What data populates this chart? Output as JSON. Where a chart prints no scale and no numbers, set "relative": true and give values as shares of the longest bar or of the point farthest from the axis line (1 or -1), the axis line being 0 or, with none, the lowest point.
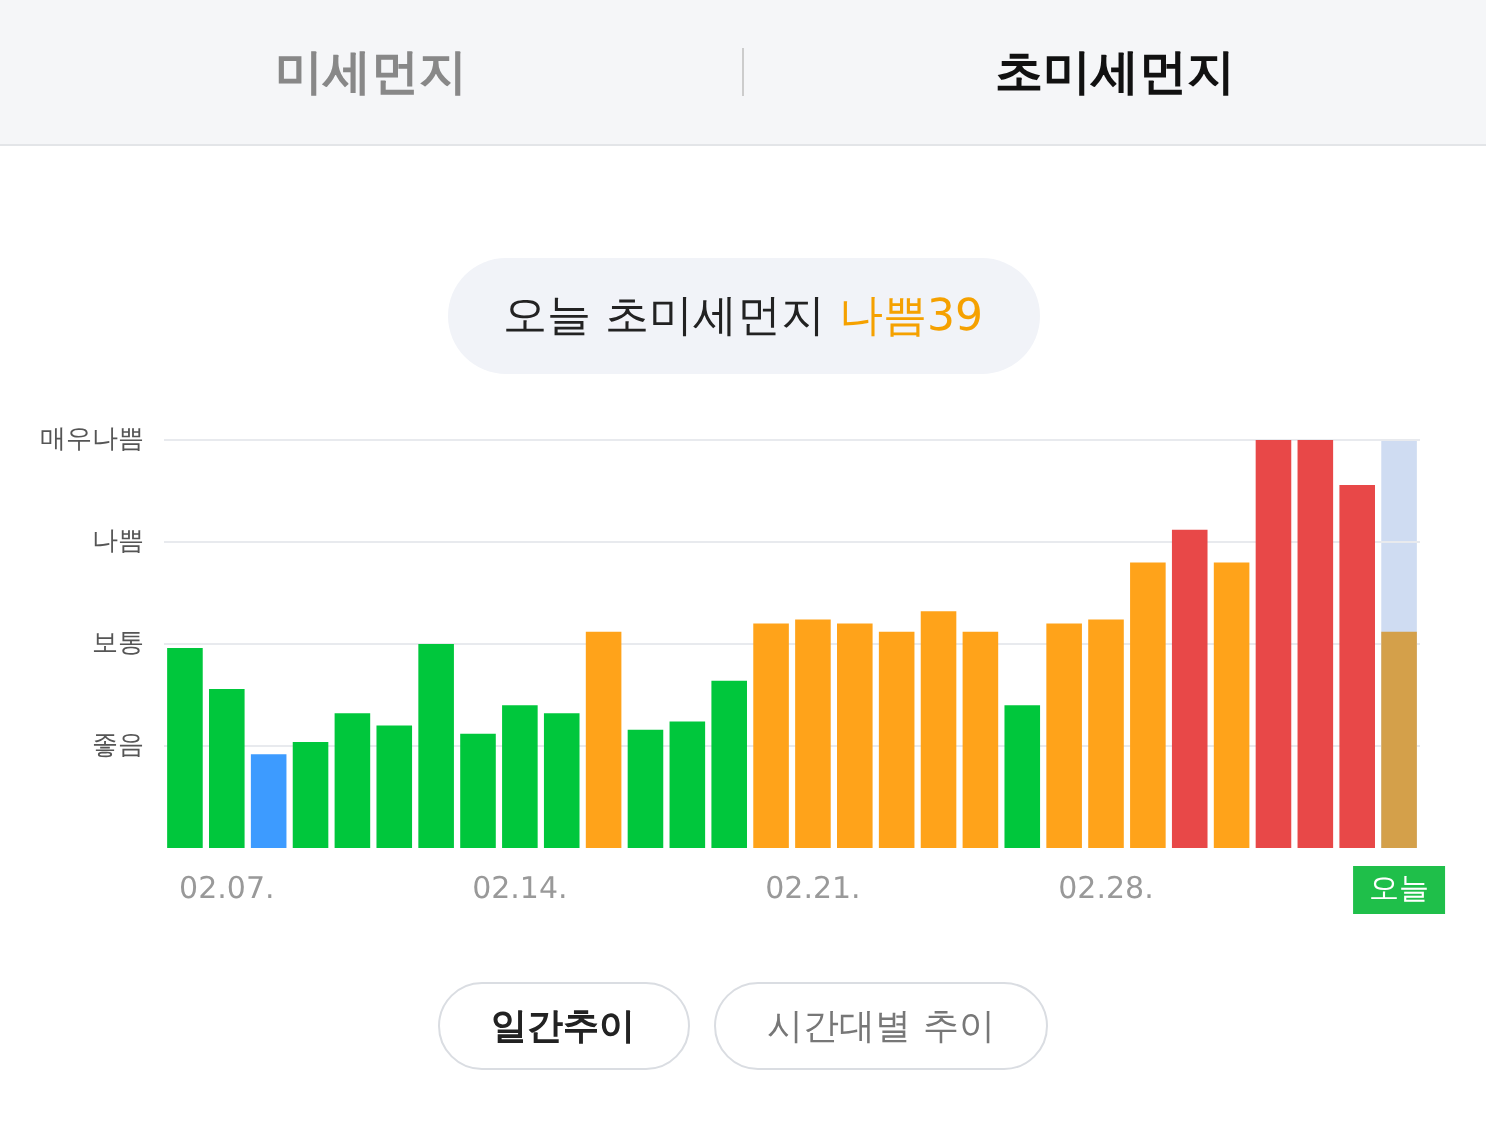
{
  "chart_data": {
    "type": "bar",
    "title": "오늘 초미세먼지 나쁨39",
    "annotations": [
      "미세먼지",
      "초미세먼지",
      "일간추이",
      "시간대별 추이"
    ],
    "ref_lines": [
      {
        "axis": "y",
        "value": 0.25,
        "label": "좋음",
        "color": "#e8eaee"
      },
      {
        "axis": "y",
        "value": 0.5,
        "label": "보통",
        "color": "#e8eaee"
      },
      {
        "axis": "y",
        "value": 0.75,
        "label": "나쁨",
        "color": "#e8eaee"
      },
      {
        "axis": "y",
        "value": 1,
        "label": "매우나쁨",
        "color": "#e8eaee"
      }
    ],
    "relative": true,
    "categories": [
      null,
      "02.07.",
      null,
      null,
      null,
      null,
      null,
      null,
      "02.14.",
      null,
      null,
      null,
      null,
      null,
      null,
      "02.21.",
      null,
      null,
      null,
      null,
      null,
      null,
      "02.28.",
      null,
      null,
      null,
      null,
      null,
      null,
      "오늘"
    ],
    "values": [
      0.49,
      0.39,
      0.23,
      0.26,
      0.33,
      0.3,
      0.5,
      0.28,
      0.35,
      0.33,
      0.53,
      0.29,
      0.31,
      0.41,
      0.55,
      0.56,
      0.55,
      0.53,
      0.58,
      0.53,
      0.35,
      0.55,
      0.56,
      0.7,
      0.78,
      0.7,
      1,
      1,
      0.89,
      0.53
    ],
    "colors": [
      "#00c73c",
      "#00c73c",
      "#3d9bff",
      "#00c73c",
      "#00c73c",
      "#00c73c",
      "#00c73c",
      "#00c73c",
      "#00c73c",
      "#00c73c",
      "#ffa31a",
      "#00c73c",
      "#00c73c",
      "#00c73c",
      "#ffa31a",
      "#ffa31a",
      "#ffa31a",
      "#ffa31a",
      "#ffa31a",
      "#ffa31a",
      "#00c73c",
      "#ffa31a",
      "#ffa31a",
      "#ffa31a",
      "#e84848",
      "#ffa31a",
      "#e84848",
      "#e84848",
      "#e84848",
      "#d4a04a"
    ],
    "bands": [
      {
        "axis": "x",
        "from": "오늘",
        "to": "오늘",
        "color": "#cfdcf2"
      }
    ],
    "legend": false
  }
}
